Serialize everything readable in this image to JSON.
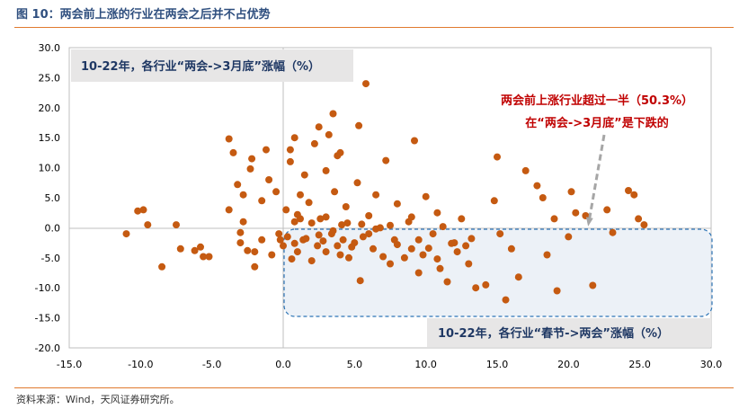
{
  "header": {
    "title": "图 10：两会前上涨的行业在两会之后并不占优势"
  },
  "footer": {
    "source": "资料来源：Wind，天风证券研究所。"
  },
  "chart_data": {
    "type": "scatter",
    "title": "",
    "xlabel": "",
    "ylabel": "",
    "xlim": [
      -15,
      30
    ],
    "ylim": [
      -20,
      30
    ],
    "x_ticks": [
      "-15.0",
      "-10.0",
      "-5.0",
      "0.0",
      "5.0",
      "10.0",
      "15.0",
      "20.0",
      "25.0",
      "30.0"
    ],
    "y_ticks": [
      "30.0",
      "25.0",
      "20.0",
      "15.0",
      "10.0",
      "5.0",
      "0.0",
      "-5.0",
      "-10.0",
      "-15.0",
      "-20.0"
    ],
    "grid": false,
    "point_color": "#c55a11",
    "y_axis_label_box": "10-22年，各行业“两会->3月底”涨幅（%）",
    "x_axis_label_box": "10-22年，各行业“春节->两会”涨幅（%）",
    "annotation": {
      "line1": "两会前上涨行业超过一半（50.3%）",
      "line2": "在“两会->3月底”是下跌的"
    },
    "points": [
      [
        -11,
        -1
      ],
      [
        -10.2,
        2.8
      ],
      [
        -9.8,
        3
      ],
      [
        -9.5,
        0.5
      ],
      [
        -8.5,
        -6.5
      ],
      [
        -7.5,
        0.5
      ],
      [
        -7.2,
        -3.5
      ],
      [
        -6.2,
        -3.8
      ],
      [
        -5.8,
        -3.2
      ],
      [
        -5.6,
        -4.8
      ],
      [
        -5.2,
        -4.8
      ],
      [
        -3.8,
        3
      ],
      [
        -3.8,
        14.8
      ],
      [
        -3.5,
        12.5
      ],
      [
        -3.2,
        7.2
      ],
      [
        -3,
        -0.8
      ],
      [
        -3,
        -2.5
      ],
      [
        -2.8,
        1
      ],
      [
        -2.8,
        5.5
      ],
      [
        -2.5,
        -3.8
      ],
      [
        -2.3,
        9.8
      ],
      [
        -2.2,
        11.5
      ],
      [
        -2,
        -6.5
      ],
      [
        -2,
        -4
      ],
      [
        -1.5,
        -2
      ],
      [
        -1.5,
        4.5
      ],
      [
        -1.2,
        13
      ],
      [
        -1,
        8
      ],
      [
        -0.8,
        -4.5
      ],
      [
        -0.5,
        6
      ],
      [
        -0.3,
        -1
      ],
      [
        0,
        -3
      ],
      [
        0.2,
        3
      ],
      [
        0.3,
        -1.5
      ],
      [
        0.5,
        11
      ],
      [
        0.5,
        13
      ],
      [
        0.8,
        1
      ],
      [
        1,
        -4
      ],
      [
        1.2,
        5.5
      ],
      [
        1.4,
        -2
      ],
      [
        1.5,
        8.8
      ],
      [
        1.6,
        -1.8
      ],
      [
        1.8,
        4.2
      ],
      [
        2,
        -5.5
      ],
      [
        2.2,
        14
      ],
      [
        2.4,
        -3
      ],
      [
        2.5,
        16.8
      ],
      [
        2.6,
        1.5
      ],
      [
        2.8,
        -2.2
      ],
      [
        3,
        9.5
      ],
      [
        3,
        -4
      ],
      [
        3.2,
        15.5
      ],
      [
        3.4,
        -1
      ],
      [
        3.5,
        19
      ],
      [
        3.6,
        6
      ],
      [
        3.8,
        -3
      ],
      [
        4,
        12.5
      ],
      [
        4.1,
        0.5
      ],
      [
        4.2,
        -2
      ],
      [
        4.4,
        3.5
      ],
      [
        4.6,
        -5
      ],
      [
        5,
        -2.5
      ],
      [
        5.2,
        7.5
      ],
      [
        5.3,
        17
      ],
      [
        5.4,
        -8.8
      ],
      [
        5.6,
        -1.5
      ],
      [
        6,
        2
      ],
      [
        6.3,
        -3.5
      ],
      [
        6.5,
        5.5
      ],
      [
        6.8,
        0
      ],
      [
        7.2,
        11.2
      ],
      [
        7.5,
        -6
      ],
      [
        7.8,
        -2
      ],
      [
        8,
        4
      ],
      [
        8.5,
        -5
      ],
      [
        8.8,
        1
      ],
      [
        9,
        -3.5
      ],
      [
        9.2,
        14.5
      ],
      [
        9.5,
        -7.5
      ],
      [
        9.8,
        -4.5
      ],
      [
        10,
        5.2
      ],
      [
        10.5,
        -1
      ],
      [
        10.8,
        2.5
      ],
      [
        11,
        -6.8
      ],
      [
        11.5,
        -9
      ],
      [
        12,
        -2.5
      ],
      [
        12.5,
        1.5
      ],
      [
        13,
        -6
      ],
      [
        13.5,
        -10
      ],
      [
        14.2,
        -9.5
      ],
      [
        14.8,
        4.5
      ],
      [
        15,
        11.8
      ],
      [
        15.2,
        -1
      ],
      [
        15.6,
        -12
      ],
      [
        16,
        -3.5
      ],
      [
        16.5,
        -8.2
      ],
      [
        17,
        9.5
      ],
      [
        17.8,
        7
      ],
      [
        18.2,
        5
      ],
      [
        18.5,
        -4.5
      ],
      [
        19,
        1.5
      ],
      [
        19.2,
        -10.5
      ],
      [
        20,
        -1.5
      ],
      [
        20.2,
        6
      ],
      [
        20.5,
        2.5
      ],
      [
        21.2,
        2
      ],
      [
        21.7,
        -9.6
      ],
      [
        22.7,
        3
      ],
      [
        23.1,
        -0.8
      ],
      [
        24.2,
        6.2
      ],
      [
        24.6,
        5.5
      ],
      [
        24.9,
        1.5
      ],
      [
        25.3,
        0.5
      ],
      [
        5.8,
        24
      ],
      [
        0.8,
        15
      ],
      [
        3.8,
        12
      ],
      [
        1.2,
        1.5
      ],
      [
        -0.2,
        -2
      ],
      [
        0.6,
        -5.2
      ],
      [
        0.8,
        -2.6
      ],
      [
        1.0,
        2.2
      ],
      [
        2.0,
        0.8
      ],
      [
        2.5,
        -1.2
      ],
      [
        3.0,
        1.8
      ],
      [
        3.5,
        -0.5
      ],
      [
        4.0,
        -4.5
      ],
      [
        4.5,
        0.8
      ],
      [
        4.8,
        -3.2
      ],
      [
        5.5,
        0.6
      ],
      [
        6.0,
        -1.0
      ],
      [
        6.5,
        -0.2
      ],
      [
        7.0,
        -4.8
      ],
      [
        7.5,
        0.4
      ],
      [
        8.0,
        -2.8
      ],
      [
        9.0,
        1.8
      ],
      [
        9.5,
        -2.0
      ],
      [
        10.2,
        -3.4
      ],
      [
        10.8,
        -5.2
      ],
      [
        11.2,
        0.2
      ],
      [
        11.8,
        -2.6
      ],
      [
        12.2,
        -4.0
      ],
      [
        12.8,
        -3.0
      ],
      [
        13.2,
        -1.8
      ]
    ]
  }
}
